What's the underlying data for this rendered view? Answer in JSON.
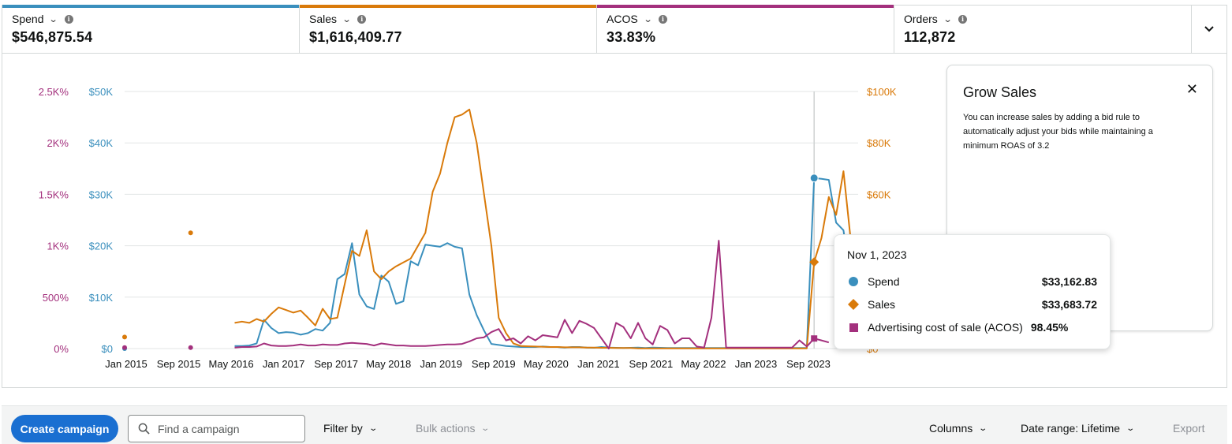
{
  "metrics": [
    {
      "label": "Spend",
      "value": "$546,875.54",
      "color": "#3a8fbd"
    },
    {
      "label": "Sales",
      "value": "$1,616,409.77",
      "color": "#d97a0a"
    },
    {
      "label": "ACOS",
      "value": "33.83%",
      "color": "#a3307d"
    },
    {
      "label": "Orders",
      "value": "112,872",
      "color": ""
    }
  ],
  "metric_chevron": "⌄",
  "metric_info": "i",
  "expand_icon": "chevron-down-icon",
  "grow_card": {
    "title": "Grow Sales",
    "text": "You can increase sales by adding a bid rule to automatically adjust your bids while maintaining a minimum ROAS of 3.2",
    "close": "✕"
  },
  "tooltip": {
    "date": "Nov 1, 2023",
    "rows": [
      {
        "label": "Spend",
        "value": "$33,162.83"
      },
      {
        "label": "Sales",
        "value": "$33,683.72"
      },
      {
        "label": "Advertising cost of sale (ACOS)",
        "value": "98.45%"
      }
    ]
  },
  "toolbar": {
    "create_label": "Create campaign",
    "search_placeholder": "Find a campaign",
    "filter_label": "Filter by",
    "bulk_label": "Bulk actions",
    "columns_label": "Columns",
    "date_range_label": "Date range: Lifetime",
    "export_label": "Export"
  },
  "chart_data": {
    "type": "line",
    "x_labels": [
      "Jan 2015",
      "Sep 2015",
      "May 2016",
      "Jan 2017",
      "Sep 2017",
      "May 2018",
      "Jan 2019",
      "Sep 2019",
      "May 2020",
      "Jan 2021",
      "Sep 2021",
      "May 2022",
      "Jan 2023",
      "Sep 2023"
    ],
    "axes": {
      "acos": {
        "ticks": [
          "0%",
          "500%",
          "1K%",
          "1.5K%",
          "2K%",
          "2.5K%"
        ],
        "max": 2500,
        "color": "#a3307d"
      },
      "spend": {
        "ticks": [
          "$0",
          "$10K",
          "$20K",
          "$30K",
          "$40K",
          "$50K"
        ],
        "max": 50000,
        "color": "#3a8fbd"
      },
      "sales": {
        "ticks": [
          "$0",
          "$20K",
          "$40K",
          "$60K",
          "$80K",
          "$100K"
        ],
        "max": 100000,
        "color": "#d97a0a"
      }
    },
    "grid": true,
    "series": [
      {
        "name": "Spend",
        "color": "#3a8fbd",
        "axis": "spend",
        "points": [
          [
            0,
            0
          ],
          [
            9,
            5500
          ],
          [
            9,
            5500
          ],
          [
            15,
            500
          ],
          [
            16,
            500
          ],
          [
            17,
            600
          ],
          [
            18,
            1000
          ],
          [
            19,
            5600
          ],
          [
            20,
            4000
          ],
          [
            21,
            3000
          ],
          [
            22,
            3200
          ],
          [
            23,
            3100
          ],
          [
            24,
            2700
          ],
          [
            25,
            3000
          ],
          [
            26,
            3800
          ],
          [
            27,
            3500
          ],
          [
            28,
            5000
          ],
          [
            29,
            13500
          ],
          [
            30,
            14500
          ],
          [
            31,
            20500
          ],
          [
            32,
            10500
          ],
          [
            33,
            8200
          ],
          [
            34,
            7700
          ],
          [
            35,
            14200
          ],
          [
            36,
            13000
          ],
          [
            37,
            8700
          ],
          [
            38,
            9200
          ],
          [
            39,
            17000
          ],
          [
            40,
            16200
          ],
          [
            41,
            20200
          ],
          [
            42,
            20000
          ],
          [
            43,
            19800
          ],
          [
            44,
            20500
          ],
          [
            45,
            19800
          ],
          [
            46,
            19500
          ],
          [
            47,
            10500
          ],
          [
            48,
            6500
          ],
          [
            49,
            3500
          ],
          [
            50,
            900
          ],
          [
            51,
            700
          ],
          [
            52,
            500
          ],
          [
            53,
            400
          ],
          [
            54,
            300
          ],
          [
            55,
            300
          ],
          [
            56,
            300
          ],
          [
            57,
            400
          ],
          [
            58,
            300
          ],
          [
            59,
            300
          ],
          [
            60,
            200
          ],
          [
            61,
            300
          ],
          [
            62,
            300
          ],
          [
            63,
            200
          ],
          [
            64,
            150
          ],
          [
            65,
            300
          ],
          [
            66,
            200
          ],
          [
            67,
            150
          ],
          [
            68,
            100
          ],
          [
            69,
            150
          ],
          [
            70,
            200
          ],
          [
            71,
            100
          ],
          [
            72,
            200
          ],
          [
            73,
            150
          ],
          [
            74,
            100
          ],
          [
            75,
            100
          ],
          [
            76,
            100
          ],
          [
            77,
            100
          ],
          [
            78,
            100
          ],
          [
            79,
            100
          ],
          [
            80,
            100
          ],
          [
            81,
            100
          ],
          [
            82,
            100
          ],
          [
            83,
            100
          ],
          [
            84,
            100
          ],
          [
            85,
            100
          ],
          [
            86,
            100
          ],
          [
            87,
            100
          ],
          [
            88,
            100
          ],
          [
            89,
            100
          ],
          [
            90,
            100
          ],
          [
            91,
            100
          ],
          [
            92,
            100
          ],
          [
            93,
            100
          ],
          [
            94,
            33162
          ],
          [
            95,
            33000
          ],
          [
            96,
            32800
          ],
          [
            97,
            24500
          ],
          [
            98,
            23000
          ],
          [
            99,
            13000
          ]
        ]
      },
      {
        "name": "Sales",
        "color": "#d97a0a",
        "axis": "sales",
        "points": [
          [
            0,
            4500
          ],
          [
            9,
            45000
          ],
          [
            15,
            10000
          ],
          [
            16,
            10500
          ],
          [
            17,
            10000
          ],
          [
            18,
            11500
          ],
          [
            19,
            10500
          ],
          [
            20,
            13500
          ],
          [
            21,
            16000
          ],
          [
            22,
            15000
          ],
          [
            23,
            14000
          ],
          [
            24,
            14800
          ],
          [
            25,
            12000
          ],
          [
            26,
            9000
          ],
          [
            27,
            15500
          ],
          [
            28,
            11500
          ],
          [
            29,
            12000
          ],
          [
            30,
            25000
          ],
          [
            31,
            38000
          ],
          [
            32,
            36000
          ],
          [
            33,
            46000
          ],
          [
            34,
            30000
          ],
          [
            35,
            27000
          ],
          [
            36,
            30000
          ],
          [
            37,
            32000
          ],
          [
            38,
            33500
          ],
          [
            39,
            35000
          ],
          [
            40,
            40000
          ],
          [
            41,
            45000
          ],
          [
            42,
            61000
          ],
          [
            43,
            68000
          ],
          [
            44,
            80000
          ],
          [
            45,
            90000
          ],
          [
            46,
            91000
          ],
          [
            47,
            93000
          ],
          [
            48,
            80000
          ],
          [
            49,
            60000
          ],
          [
            50,
            40000
          ],
          [
            51,
            12000
          ],
          [
            52,
            6000
          ],
          [
            53,
            2000
          ],
          [
            54,
            1000
          ],
          [
            55,
            900
          ],
          [
            56,
            800
          ],
          [
            57,
            700
          ],
          [
            58,
            600
          ],
          [
            59,
            600
          ],
          [
            60,
            500
          ],
          [
            61,
            500
          ],
          [
            62,
            500
          ],
          [
            63,
            400
          ],
          [
            64,
            400
          ],
          [
            65,
            300
          ],
          [
            66,
            300
          ],
          [
            67,
            200
          ],
          [
            68,
            200
          ],
          [
            69,
            200
          ],
          [
            70,
            100
          ],
          [
            71,
            100
          ],
          [
            72,
            100
          ],
          [
            73,
            100
          ],
          [
            74,
            100
          ],
          [
            75,
            100
          ],
          [
            76,
            100
          ],
          [
            77,
            100
          ],
          [
            78,
            100
          ],
          [
            79,
            100
          ],
          [
            80,
            100
          ],
          [
            81,
            100
          ],
          [
            82,
            100
          ],
          [
            83,
            100
          ],
          [
            84,
            100
          ],
          [
            85,
            100
          ],
          [
            86,
            100
          ],
          [
            87,
            100
          ],
          [
            88,
            100
          ],
          [
            89,
            100
          ],
          [
            90,
            100
          ],
          [
            91,
            100
          ],
          [
            92,
            100
          ],
          [
            93,
            100
          ],
          [
            94,
            33683
          ],
          [
            95,
            43000
          ],
          [
            96,
            59000
          ],
          [
            97,
            52000
          ],
          [
            98,
            69000
          ],
          [
            99,
            42000
          ]
        ]
      },
      {
        "name": "ACOS",
        "color": "#a3307d",
        "axis": "acos",
        "points": [
          [
            0,
            10
          ],
          [
            9,
            10
          ],
          [
            15,
            10
          ],
          [
            16,
            15
          ],
          [
            17,
            15
          ],
          [
            18,
            20
          ],
          [
            19,
            50
          ],
          [
            20,
            30
          ],
          [
            21,
            25
          ],
          [
            22,
            25
          ],
          [
            23,
            30
          ],
          [
            24,
            40
          ],
          [
            25,
            30
          ],
          [
            26,
            30
          ],
          [
            27,
            40
          ],
          [
            28,
            35
          ],
          [
            29,
            35
          ],
          [
            30,
            50
          ],
          [
            31,
            55
          ],
          [
            32,
            50
          ],
          [
            33,
            45
          ],
          [
            34,
            30
          ],
          [
            35,
            50
          ],
          [
            36,
            40
          ],
          [
            37,
            30
          ],
          [
            38,
            30
          ],
          [
            39,
            25
          ],
          [
            40,
            25
          ],
          [
            41,
            25
          ],
          [
            42,
            30
          ],
          [
            43,
            35
          ],
          [
            44,
            40
          ],
          [
            45,
            40
          ],
          [
            46,
            45
          ],
          [
            47,
            70
          ],
          [
            48,
            100
          ],
          [
            49,
            110
          ],
          [
            50,
            160
          ],
          [
            51,
            190
          ],
          [
            52,
            80
          ],
          [
            53,
            100
          ],
          [
            54,
            50
          ],
          [
            55,
            120
          ],
          [
            56,
            80
          ],
          [
            57,
            130
          ],
          [
            58,
            120
          ],
          [
            59,
            110
          ],
          [
            60,
            280
          ],
          [
            61,
            150
          ],
          [
            62,
            270
          ],
          [
            63,
            240
          ],
          [
            64,
            200
          ],
          [
            65,
            100
          ],
          [
            66,
            0
          ],
          [
            67,
            250
          ],
          [
            68,
            210
          ],
          [
            69,
            100
          ],
          [
            70,
            250
          ],
          [
            71,
            100
          ],
          [
            72,
            40
          ],
          [
            73,
            220
          ],
          [
            74,
            180
          ],
          [
            75,
            50
          ],
          [
            76,
            100
          ],
          [
            77,
            100
          ],
          [
            78,
            20
          ],
          [
            79,
            10
          ],
          [
            80,
            300
          ],
          [
            81,
            1050
          ],
          [
            82,
            10
          ],
          [
            83,
            10
          ],
          [
            84,
            10
          ],
          [
            85,
            10
          ],
          [
            86,
            10
          ],
          [
            87,
            10
          ],
          [
            88,
            10
          ],
          [
            89,
            10
          ],
          [
            90,
            10
          ],
          [
            91,
            10
          ],
          [
            92,
            80
          ],
          [
            93,
            20
          ],
          [
            94,
            98
          ],
          [
            95,
            80
          ],
          [
            96,
            60
          ]
        ]
      }
    ]
  }
}
